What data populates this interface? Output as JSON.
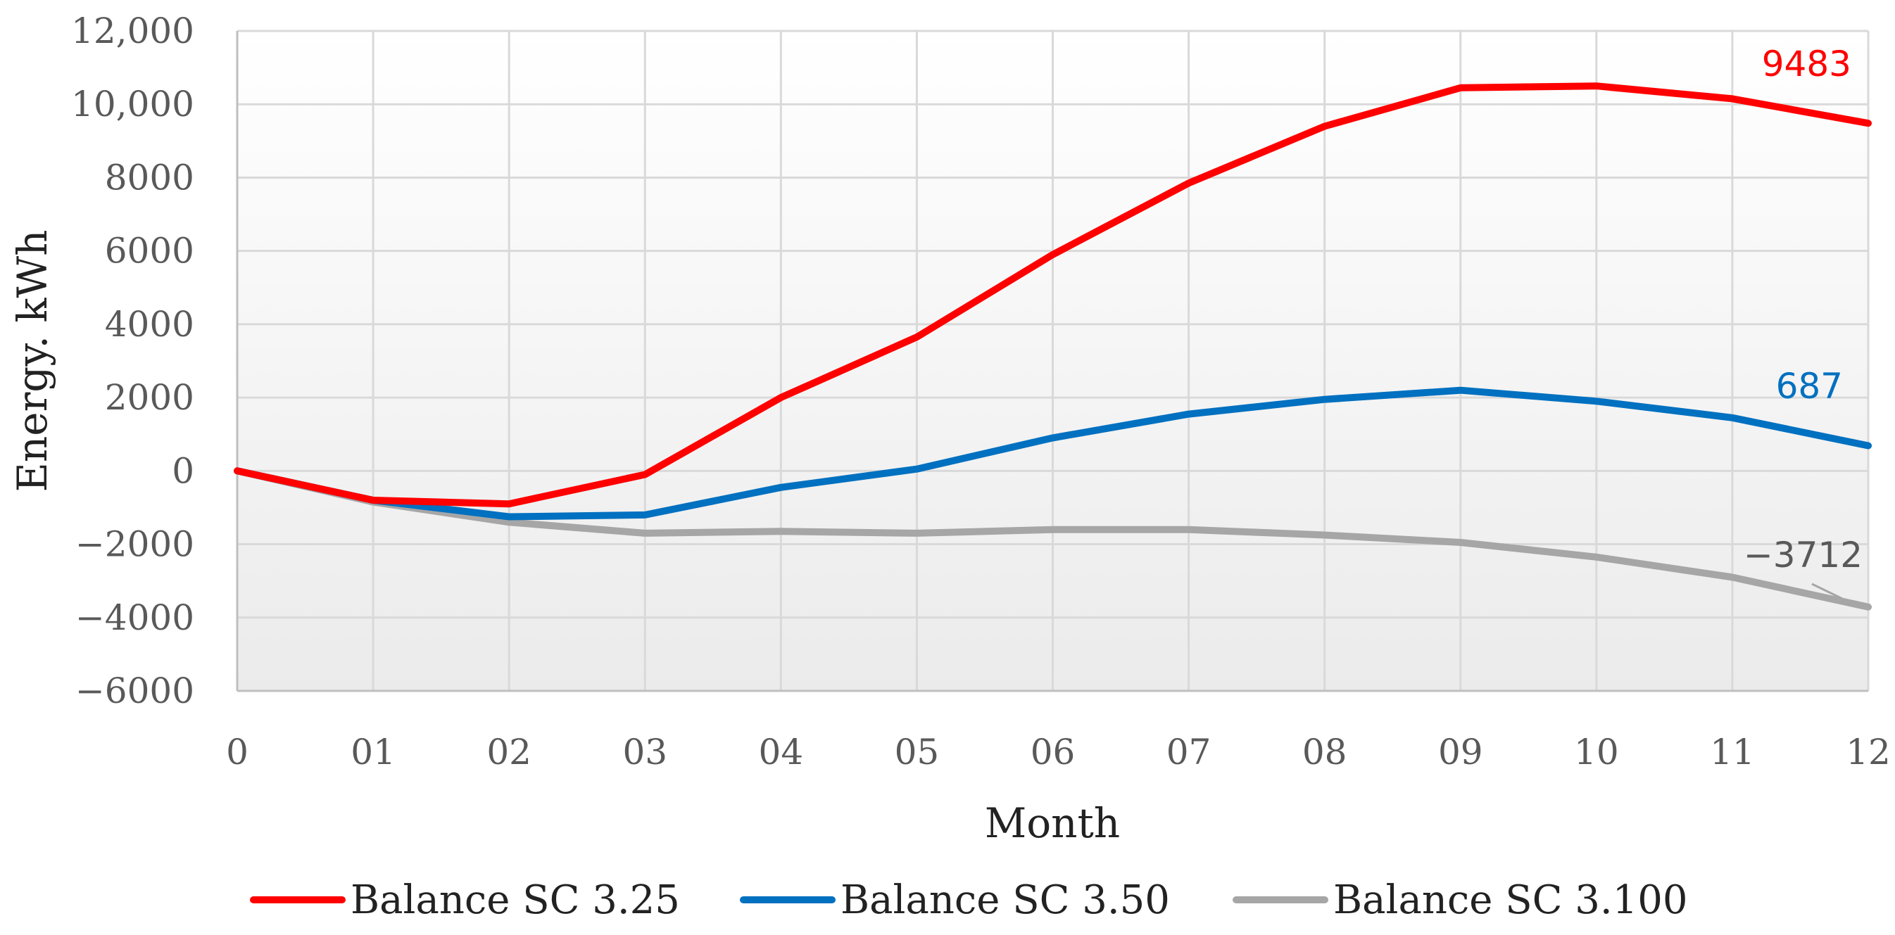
{
  "chart_data": {
    "type": "line",
    "xlabel": "Month",
    "ylabel": "Energy. kWh",
    "categories": [
      "0",
      "01",
      "02",
      "03",
      "04",
      "05",
      "06",
      "07",
      "08",
      "09",
      "10",
      "11",
      "12"
    ],
    "ylim": [
      -6000,
      12000
    ],
    "y_ticks": [
      {
        "value": 12000,
        "label": "12,000"
      },
      {
        "value": 10000,
        "label": "10,000"
      },
      {
        "value": 8000,
        "label": "8000"
      },
      {
        "value": 6000,
        "label": "6000"
      },
      {
        "value": 4000,
        "label": "4000"
      },
      {
        "value": 2000,
        "label": "2000"
      },
      {
        "value": 0,
        "label": "0"
      },
      {
        "value": -2000,
        "label": "−2000"
      },
      {
        "value": -4000,
        "label": "−4000"
      },
      {
        "value": -6000,
        "label": "−6000"
      }
    ],
    "grid": true,
    "legend_position": "bottom",
    "series": [
      {
        "name": "Balance SC 3.25",
        "color": "#ff0000",
        "values": [
          0,
          -800,
          -900,
          -100,
          2000,
          3650,
          5900,
          7850,
          9400,
          10450,
          10500,
          10150,
          9483
        ],
        "end_label": "9483"
      },
      {
        "name": "Balance SC 3.50",
        "color": "#0070c0",
        "values": [
          0,
          -800,
          -1250,
          -1200,
          -450,
          50,
          900,
          1550,
          1950,
          2200,
          1900,
          1450,
          687
        ],
        "end_label": "687"
      },
      {
        "name": "Balance SC 3.100",
        "color": "#a6a6a6",
        "values": [
          0,
          -850,
          -1400,
          -1700,
          -1650,
          -1700,
          -1600,
          -1600,
          -1750,
          -1950,
          -2350,
          -2900,
          -3712
        ],
        "end_label": "−3712"
      }
    ]
  }
}
